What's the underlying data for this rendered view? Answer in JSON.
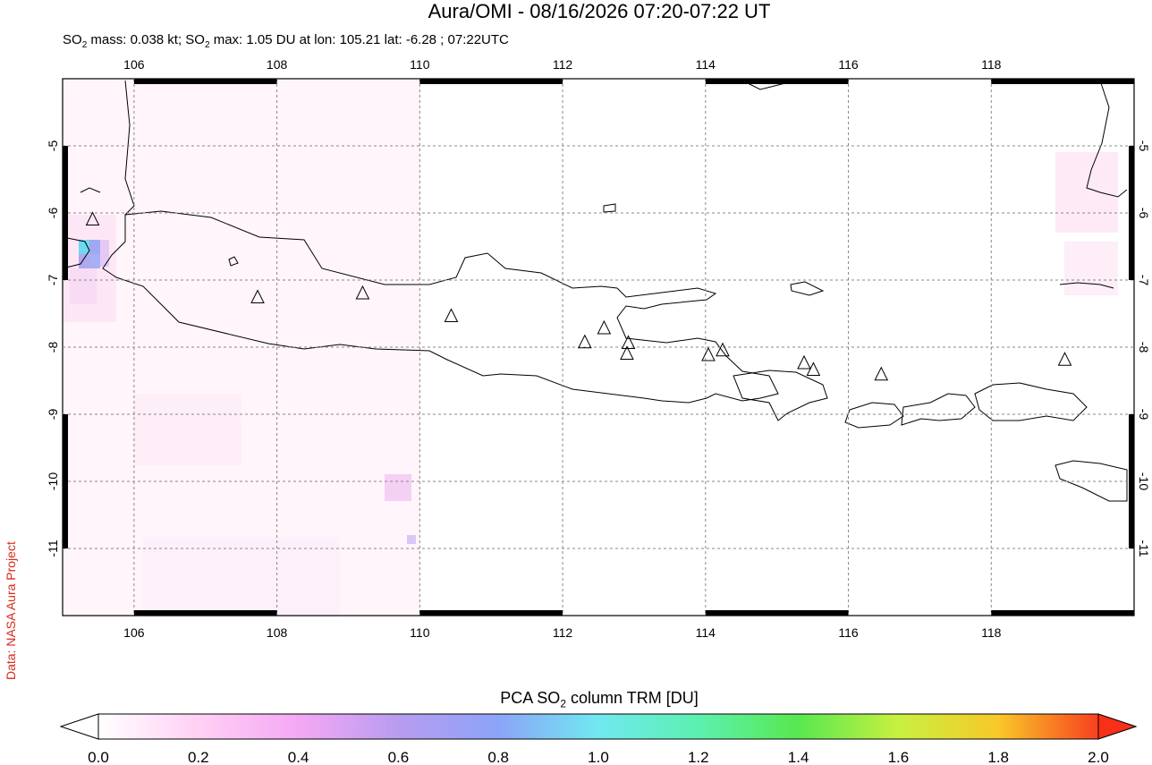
{
  "header": {
    "title": "Aura/OMI - 08/16/2026 07:20-07:22 UT",
    "subtitle_prefix": "SO",
    "subtitle_sub": "2",
    "subtitle_mid": " mass: 0.038 kt; SO",
    "subtitle_sub2": "2",
    "subtitle_rest": " max: 1.05 DU at lon: 105.21 lat: -6.28 ; 07:22UTC"
  },
  "credit": "Data: NASA Aura Project",
  "map": {
    "lon_range": [
      105,
      120
    ],
    "lat_range": [
      -12,
      -4
    ],
    "lon_ticks": [
      "106",
      "108",
      "110",
      "112",
      "114",
      "116",
      "118"
    ],
    "lat_ticks": [
      "-5",
      "-6",
      "-7",
      "-8",
      "-9",
      "-10",
      "-11"
    ],
    "gridlines": true,
    "volcanoes": [
      {
        "lon": 105.42,
        "lat": -6.1
      },
      {
        "lon": 107.73,
        "lat": -7.26
      },
      {
        "lon": 109.2,
        "lat": -7.2
      },
      {
        "lon": 110.44,
        "lat": -7.54
      },
      {
        "lon": 112.31,
        "lat": -7.93
      },
      {
        "lon": 112.58,
        "lat": -7.72
      },
      {
        "lon": 112.92,
        "lat": -7.94
      },
      {
        "lon": 112.9,
        "lat": -8.1
      },
      {
        "lon": 114.04,
        "lat": -8.12
      },
      {
        "lon": 114.24,
        "lat": -8.05
      },
      {
        "lon": 115.38,
        "lat": -8.24
      },
      {
        "lon": 115.51,
        "lat": -8.34
      },
      {
        "lon": 116.46,
        "lat": -8.41
      },
      {
        "lon": 119.03,
        "lat": -8.19
      }
    ]
  },
  "colorbar": {
    "title_prefix": "PCA SO",
    "title_sub": "2",
    "title_rest": " column TRM [DU]",
    "ticks": [
      "0.0",
      "0.2",
      "0.4",
      "0.6",
      "0.8",
      "1.0",
      "1.2",
      "1.4",
      "1.6",
      "1.8",
      "2.0"
    ],
    "colors": [
      "#ffffff",
      "#ffd0f4",
      "#f4a8f4",
      "#b89cf0",
      "#8ca4f8",
      "#70e8f0",
      "#5cf0b0",
      "#58e850",
      "#c8f040",
      "#f8c828",
      "#f84020"
    ]
  }
}
